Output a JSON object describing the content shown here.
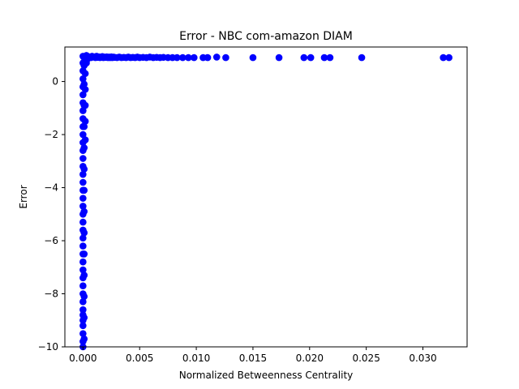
{
  "chart_data": {
    "type": "scatter",
    "title": "Error - NBC com-amazon DIAM",
    "xlabel": "Normalized Betweenness Centrality",
    "ylabel": "Error",
    "xlim": [
      -0.0016,
      0.0339
    ],
    "ylim": [
      -10,
      1.3
    ],
    "x_ticks": [
      0.0,
      0.005,
      0.01,
      0.015,
      0.02,
      0.025,
      0.03
    ],
    "x_tick_labels": [
      "0.000",
      "0.005",
      "0.010",
      "0.015",
      "0.020",
      "0.025",
      "0.030"
    ],
    "y_ticks": [
      0,
      -2,
      -4,
      -6,
      -8,
      -10
    ],
    "y_tick_labels": [
      "0",
      "−2",
      "−4",
      "−6",
      "−8",
      "−10"
    ],
    "grid": false,
    "legend": "none",
    "marker_color": "#0000ff",
    "series": [
      {
        "points": [
          [
            0.0,
            -10.0
          ],
          [
            0.0,
            -9.8
          ],
          [
            0.0,
            -9.5
          ],
          [
            0.0,
            -9.2
          ],
          [
            0.0,
            -9.0
          ],
          [
            0.0,
            -8.8
          ],
          [
            0.0,
            -8.6
          ],
          [
            0.0,
            -8.3
          ],
          [
            0.0,
            -8.0
          ],
          [
            0.0,
            -7.7
          ],
          [
            0.0,
            -7.4
          ],
          [
            0.0,
            -7.1
          ],
          [
            0.0,
            -6.8
          ],
          [
            0.0,
            -6.5
          ],
          [
            0.0,
            -6.2
          ],
          [
            0.0,
            -5.9
          ],
          [
            0.0,
            -5.6
          ],
          [
            0.0,
            -5.3
          ],
          [
            0.0,
            -5.0
          ],
          [
            0.0,
            -4.7
          ],
          [
            0.0,
            -4.4
          ],
          [
            0.0,
            -4.1
          ],
          [
            0.0,
            -3.8
          ],
          [
            0.0,
            -3.5
          ],
          [
            0.0,
            -3.2
          ],
          [
            0.0,
            -2.9
          ],
          [
            0.0,
            -2.6
          ],
          [
            0.0,
            -2.3
          ],
          [
            0.0,
            -2.0
          ],
          [
            0.0,
            -1.7
          ],
          [
            0.0,
            -1.4
          ],
          [
            0.0,
            -1.1
          ],
          [
            0.0,
            -0.8
          ],
          [
            0.0,
            -0.5
          ],
          [
            0.0,
            -0.2
          ],
          [
            0.0,
            0.1
          ],
          [
            0.0,
            0.4
          ],
          [
            0.0,
            0.7
          ],
          [
            0.0,
            0.95
          ],
          [
            0.0001,
            -9.7
          ],
          [
            0.0001,
            -8.9
          ],
          [
            0.0001,
            -8.1
          ],
          [
            0.0001,
            -7.3
          ],
          [
            0.0001,
            -6.5
          ],
          [
            0.0001,
            -5.7
          ],
          [
            0.0001,
            -4.9
          ],
          [
            0.0001,
            -4.1
          ],
          [
            0.0001,
            -3.3
          ],
          [
            0.0001,
            -2.5
          ],
          [
            0.0001,
            -1.7
          ],
          [
            0.0001,
            -0.9
          ],
          [
            0.0001,
            -0.1
          ],
          [
            0.0001,
            0.6
          ],
          [
            0.0001,
            0.9
          ],
          [
            0.0002,
            -2.2
          ],
          [
            0.0002,
            -1.5
          ],
          [
            0.0002,
            -0.9
          ],
          [
            0.0002,
            -0.3
          ],
          [
            0.0002,
            0.3
          ],
          [
            0.0002,
            0.8
          ],
          [
            0.0002,
            0.95
          ],
          [
            0.0003,
            0.7
          ],
          [
            0.0003,
            0.9
          ],
          [
            0.0003,
            0.98
          ],
          [
            0.0004,
            0.85
          ],
          [
            0.0004,
            0.95
          ],
          [
            0.0005,
            0.9
          ],
          [
            0.0006,
            0.92
          ],
          [
            0.0007,
            0.9
          ],
          [
            0.0008,
            0.95
          ],
          [
            0.0009,
            0.92
          ],
          [
            0.001,
            0.93
          ],
          [
            0.0011,
            0.9
          ],
          [
            0.0012,
            0.95
          ],
          [
            0.0013,
            0.91
          ],
          [
            0.0014,
            0.93
          ],
          [
            0.0015,
            0.9
          ],
          [
            0.0016,
            0.92
          ],
          [
            0.0017,
            0.94
          ],
          [
            0.0018,
            0.9
          ],
          [
            0.0019,
            0.92
          ],
          [
            0.002,
            0.91
          ],
          [
            0.0021,
            0.93
          ],
          [
            0.0022,
            0.9
          ],
          [
            0.0023,
            0.92
          ],
          [
            0.0024,
            0.9
          ],
          [
            0.0025,
            0.93
          ],
          [
            0.0026,
            0.9
          ],
          [
            0.0027,
            0.92
          ],
          [
            0.0028,
            0.91
          ],
          [
            0.003,
            0.9
          ],
          [
            0.0032,
            0.92
          ],
          [
            0.0034,
            0.9
          ],
          [
            0.0036,
            0.91
          ],
          [
            0.0038,
            0.9
          ],
          [
            0.004,
            0.92
          ],
          [
            0.0042,
            0.9
          ],
          [
            0.0044,
            0.91
          ],
          [
            0.0046,
            0.9
          ],
          [
            0.0048,
            0.92
          ],
          [
            0.005,
            0.9
          ],
          [
            0.0053,
            0.91
          ],
          [
            0.0056,
            0.9
          ],
          [
            0.0059,
            0.92
          ],
          [
            0.0062,
            0.9
          ],
          [
            0.0065,
            0.91
          ],
          [
            0.0068,
            0.9
          ],
          [
            0.0071,
            0.91
          ],
          [
            0.0075,
            0.9
          ],
          [
            0.0079,
            0.9
          ],
          [
            0.0083,
            0.9
          ],
          [
            0.0088,
            0.9
          ],
          [
            0.0093,
            0.9
          ],
          [
            0.0098,
            0.9
          ],
          [
            0.0106,
            0.9
          ],
          [
            0.011,
            0.9
          ],
          [
            0.0118,
            0.92
          ],
          [
            0.0126,
            0.9
          ],
          [
            0.015,
            0.9
          ],
          [
            0.0173,
            0.9
          ],
          [
            0.0195,
            0.9
          ],
          [
            0.0201,
            0.9
          ],
          [
            0.0213,
            0.9
          ],
          [
            0.0218,
            0.9
          ],
          [
            0.0246,
            0.9
          ],
          [
            0.0318,
            0.9
          ],
          [
            0.0323,
            0.9
          ]
        ]
      }
    ]
  }
}
